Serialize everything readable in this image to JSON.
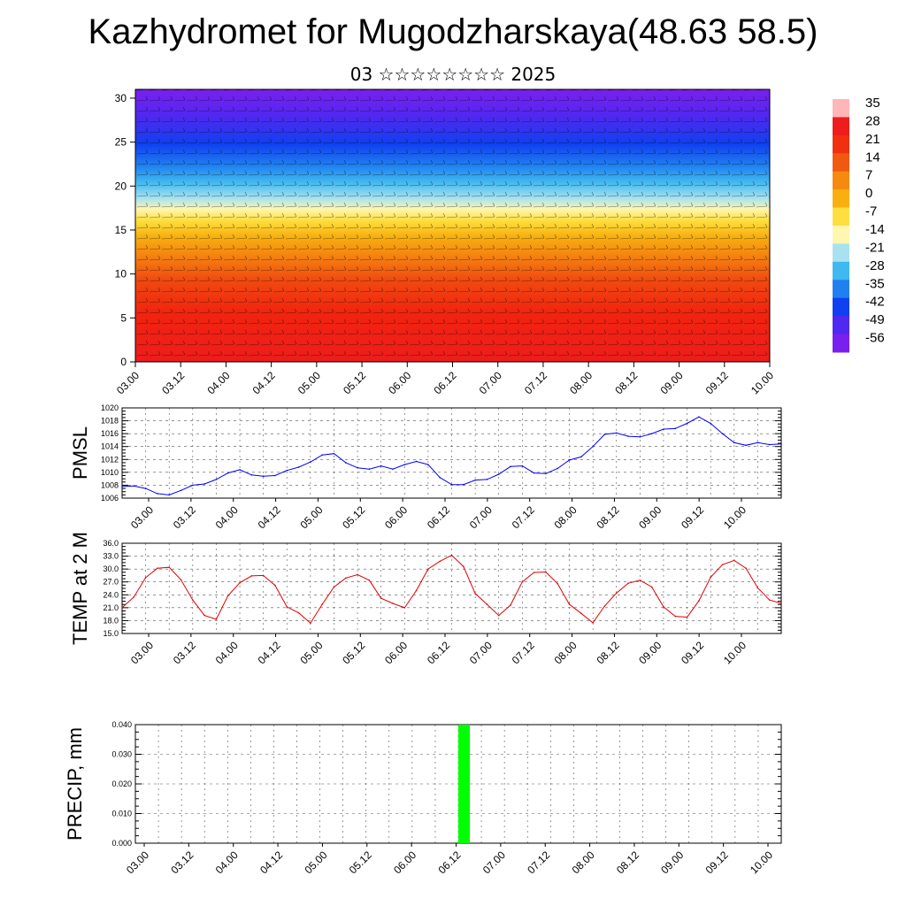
{
  "page": {
    "title": "Kazhydromet for Mugodzharskaya(48.63 58.5)",
    "subtitle": "03 ☆☆☆☆☆☆☆☆ 2025"
  },
  "chart_data": [
    {
      "type": "heatmap",
      "title": "",
      "xlabel": "",
      "ylabel": "",
      "x_ticks": [
        "03.00",
        "03.12",
        "04.00",
        "04.12",
        "05.00",
        "05.12",
        "06.00",
        "06.12",
        "07.00",
        "07.12",
        "08.00",
        "08.12",
        "09.00",
        "09.12",
        "10.00"
      ],
      "y_ticks": [
        0,
        5,
        10,
        15,
        20,
        25,
        30
      ],
      "ylim": [
        0,
        31
      ],
      "colorbar": {
        "labels": [
          35,
          28,
          21,
          14,
          7,
          0,
          -7,
          -14,
          -21,
          -28,
          -35,
          -42,
          -49,
          -56
        ],
        "colors": [
          "#ffb6b6",
          "#ee1c1c",
          "#f03010",
          "#f05a10",
          "#f58a10",
          "#f8b010",
          "#fde040",
          "#fff6b0",
          "#a8e2f0",
          "#40b8f0",
          "#2080f0",
          "#1040f0",
          "#5028f0",
          "#7a20ee"
        ]
      },
      "overlay": "wind barbs"
    },
    {
      "type": "line",
      "ylabel": "PMSL",
      "ylim": [
        1006,
        1020
      ],
      "y_ticks": [
        1006,
        1008,
        1010,
        1012,
        1014,
        1016,
        1018,
        1020
      ],
      "x_ticks": [
        "03.00",
        "03.12",
        "04.00",
        "04.12",
        "05.00",
        "05.12",
        "06.00",
        "06.12",
        "07.00",
        "07.12",
        "08.00",
        "08.12",
        "09.00",
        "09.12",
        "10.00"
      ],
      "color": "#0000ff",
      "x": [
        0,
        3,
        6,
        9,
        12,
        15,
        18,
        21,
        24,
        27,
        30,
        33,
        36,
        39,
        42,
        45,
        48,
        51,
        54,
        57,
        60,
        63,
        66,
        69,
        72,
        75,
        78,
        81,
        84,
        87,
        90,
        93,
        96,
        99,
        102,
        105,
        108,
        111,
        114,
        117,
        120,
        123,
        126,
        129,
        132,
        135,
        138,
        141,
        144,
        147,
        150,
        153,
        156,
        159,
        162,
        165,
        168
      ],
      "values": [
        1007.8,
        1007.9,
        1007.5,
        1006.7,
        1006.5,
        1007.2,
        1008.0,
        1008.2,
        1008.9,
        1009.9,
        1010.4,
        1009.6,
        1009.4,
        1009.5,
        1010.3,
        1010.8,
        1011.6,
        1012.7,
        1012.9,
        1011.5,
        1010.7,
        1010.5,
        1011.0,
        1010.5,
        1011.2,
        1011.7,
        1011.2,
        1009.2,
        1008.1,
        1008.1,
        1008.8,
        1008.9,
        1009.7,
        1010.9,
        1011.0,
        1009.9,
        1009.8,
        1010.6,
        1011.9,
        1012.4,
        1014.0,
        1015.9,
        1016.1,
        1015.6,
        1015.5,
        1016.0,
        1016.7,
        1016.8,
        1017.6,
        1018.6,
        1017.6,
        1016.0,
        1014.6,
        1014.2,
        1014.6,
        1014.3,
        1014.4
      ]
    },
    {
      "type": "line",
      "ylabel": "TEMP at 2 M",
      "ylim": [
        15,
        36
      ],
      "y_ticks": [
        "15.0",
        "18.0",
        "21.0",
        "24.0",
        "27.0",
        "30.0",
        "33.0",
        "36.0"
      ],
      "x_ticks": [
        "03.00",
        "03.12",
        "04.00",
        "04.12",
        "05.00",
        "05.12",
        "06.00",
        "06.12",
        "07.00",
        "07.12",
        "08.00",
        "08.12",
        "09.00",
        "09.12",
        "10.00"
      ],
      "color": "#e00000",
      "x": [
        0,
        3,
        6,
        9,
        12,
        15,
        18,
        21,
        24,
        27,
        30,
        33,
        36,
        39,
        42,
        45,
        48,
        51,
        54,
        57,
        60,
        63,
        66,
        69,
        72,
        75,
        78,
        81,
        84,
        87,
        90,
        93,
        96,
        99,
        102,
        105,
        108,
        111,
        114,
        117,
        120,
        123,
        126,
        129,
        132,
        135,
        138,
        141,
        144,
        147,
        150,
        153,
        156,
        159,
        162,
        165,
        168
      ],
      "values": [
        21.0,
        23.5,
        28.0,
        30.2,
        30.4,
        27.5,
        22.8,
        19.2,
        18.3,
        23.8,
        26.8,
        28.4,
        28.5,
        26.2,
        21.2,
        19.8,
        17.4,
        21.8,
        25.8,
        27.9,
        28.7,
        27.4,
        23.2,
        22.0,
        21.0,
        25.0,
        30.0,
        31.8,
        33.2,
        30.6,
        24.3,
        21.8,
        19.2,
        21.6,
        27.0,
        29.2,
        29.3,
        26.6,
        21.8,
        19.7,
        17.5,
        21.4,
        24.4,
        26.7,
        27.4,
        25.8,
        21.2,
        19.0,
        18.8,
        22.6,
        28.1,
        31.0,
        32.0,
        30.2,
        25.6,
        22.8,
        22.0
      ]
    },
    {
      "type": "bar",
      "ylabel": "PRECIP, mm",
      "ylim": [
        0,
        0.04
      ],
      "y_ticks": [
        "0.000",
        "0.010",
        "0.020",
        "0.030",
        "0.040"
      ],
      "x_ticks": [
        "03.00",
        "03.12",
        "04.00",
        "04.12",
        "05.00",
        "05.12",
        "06.00",
        "06.12",
        "07.00",
        "07.12",
        "08.00",
        "08.12",
        "09.00",
        "09.12",
        "10.00"
      ],
      "color": "#00ff00",
      "bars": [
        {
          "x_start": 84,
          "x_end": 87,
          "value": 0.04
        }
      ]
    }
  ]
}
